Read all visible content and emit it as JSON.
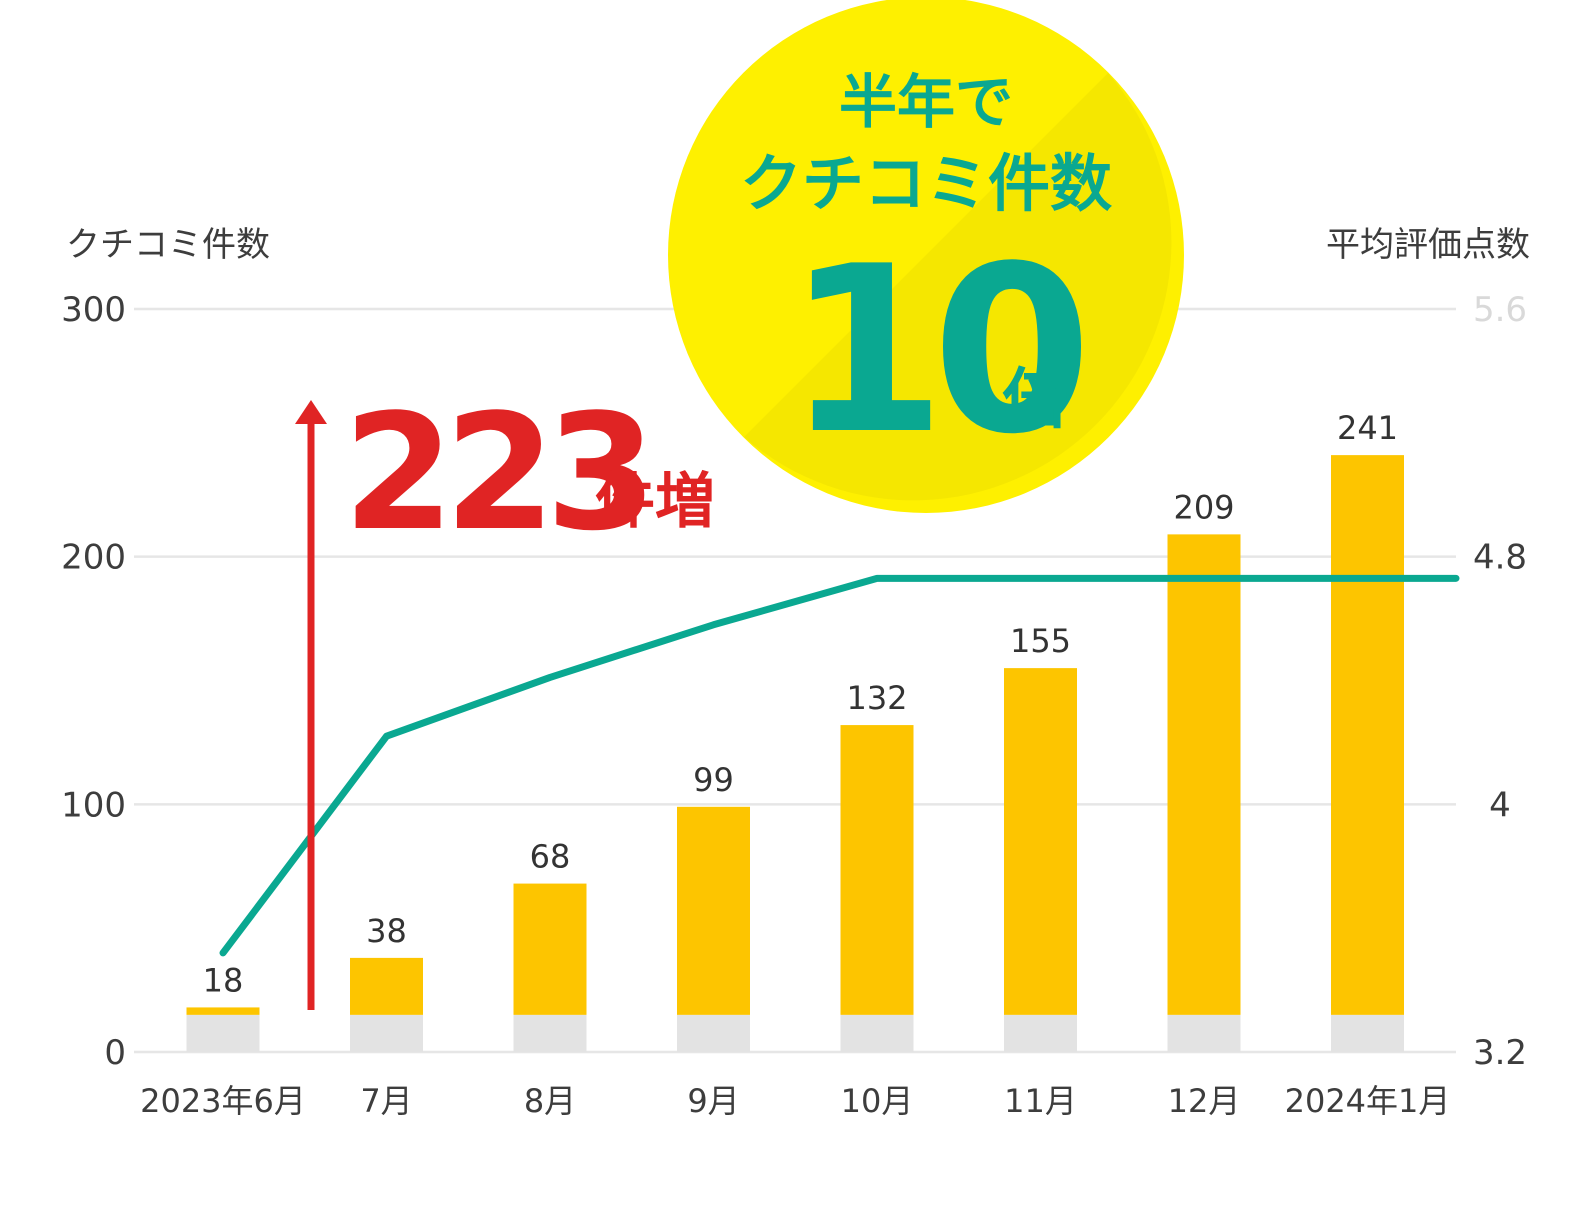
{
  "chart_data": {
    "type": "bar",
    "categories": [
      "2023年6月",
      "7月",
      "8月",
      "9月",
      "10月",
      "11月",
      "12月",
      "2024年1月"
    ],
    "series": [
      {
        "values": [
          18,
          38,
          68,
          99,
          132,
          155,
          209,
          241
        ]
      }
    ],
    "baseline_value": 15,
    "line_series": {
      "values": [
        3.52,
        4.22,
        4.41,
        4.58,
        4.73,
        4.73,
        4.73,
        4.73
      ]
    },
    "ylabel": "クチコミ件数",
    "ylabel_right": "平均評価点数",
    "ylim": [
      0,
      300
    ],
    "ylim_right": [
      3.2,
      5.6
    ],
    "yticks": [
      "0",
      "100",
      "200",
      "300"
    ],
    "yticks_right": [
      "3.2",
      "4",
      "4.8",
      "5.6"
    ],
    "grid": true,
    "legend": "none"
  },
  "badge": {
    "line1": "半年で",
    "line2": "クチコミ件数",
    "big": "10",
    "suffix": "倍"
  },
  "increase": {
    "value": "223",
    "suffix": "件増"
  },
  "colors": {
    "bar": "#fdc500",
    "baseline": "#e3e3e3",
    "line": "#0aa891",
    "badge": "#fef000",
    "arrow": "#e02424"
  }
}
